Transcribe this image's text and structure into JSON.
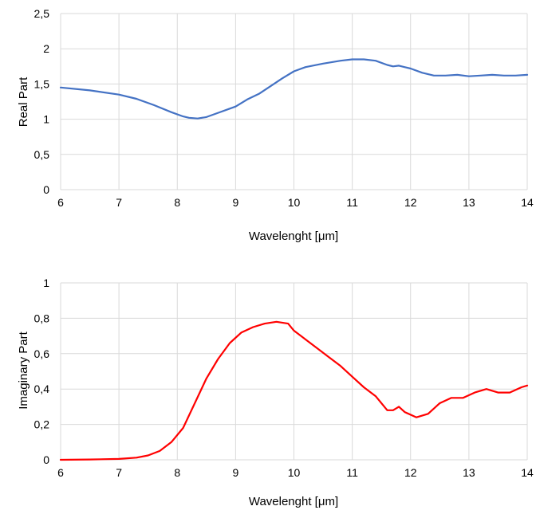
{
  "chart_data": [
    {
      "type": "line",
      "title": "",
      "xlabel": "Wavelenght [μm]",
      "ylabel": "Real Part",
      "xlim": [
        6,
        14
      ],
      "ylim": [
        0,
        2.5
      ],
      "xticks": [
        "6",
        "7",
        "8",
        "9",
        "10",
        "11",
        "12",
        "13",
        "14"
      ],
      "yticks": [
        "0",
        "0,5",
        "1",
        "1,5",
        "2",
        "2,5"
      ],
      "grid": true,
      "legend": "none",
      "color": "#4472c4",
      "series": [
        {
          "x": [
            6.0,
            6.5,
            7.0,
            7.3,
            7.6,
            7.9,
            8.1,
            8.2,
            8.35,
            8.5,
            8.7,
            8.9,
            9.0,
            9.2,
            9.4,
            9.6,
            9.8,
            10.0,
            10.2,
            10.5,
            10.8,
            11.0,
            11.2,
            11.4,
            11.6,
            11.7,
            11.8,
            12.0,
            12.2,
            12.4,
            12.6,
            12.8,
            13.0,
            13.2,
            13.4,
            13.6,
            13.8,
            14.0
          ],
          "y": [
            1.45,
            1.41,
            1.35,
            1.29,
            1.2,
            1.1,
            1.04,
            1.02,
            1.01,
            1.03,
            1.09,
            1.15,
            1.18,
            1.28,
            1.36,
            1.47,
            1.58,
            1.68,
            1.74,
            1.79,
            1.83,
            1.85,
            1.85,
            1.83,
            1.77,
            1.75,
            1.76,
            1.72,
            1.66,
            1.62,
            1.62,
            1.63,
            1.61,
            1.62,
            1.63,
            1.62,
            1.62,
            1.63
          ]
        }
      ]
    },
    {
      "type": "line",
      "title": "",
      "xlabel": "Wavelenght [μm]",
      "ylabel": "Imaginary Part",
      "xlim": [
        6,
        14
      ],
      "ylim": [
        0,
        1
      ],
      "xticks": [
        "6",
        "7",
        "8",
        "9",
        "10",
        "11",
        "12",
        "13",
        "14"
      ],
      "yticks": [
        "0",
        "0,2",
        "0,4",
        "0,6",
        "0,8",
        "1"
      ],
      "grid": true,
      "legend": "none",
      "color": "#ff0000",
      "series": [
        {
          "x": [
            6.0,
            6.5,
            7.0,
            7.3,
            7.5,
            7.7,
            7.9,
            8.1,
            8.3,
            8.5,
            8.7,
            8.9,
            9.1,
            9.3,
            9.5,
            9.7,
            9.9,
            10.0,
            10.2,
            10.4,
            10.6,
            10.8,
            11.0,
            11.2,
            11.4,
            11.6,
            11.7,
            11.8,
            11.9,
            12.1,
            12.3,
            12.5,
            12.7,
            12.9,
            13.1,
            13.3,
            13.5,
            13.7,
            13.9,
            14.0
          ],
          "y": [
            0.0,
            0.002,
            0.005,
            0.012,
            0.025,
            0.05,
            0.1,
            0.18,
            0.32,
            0.46,
            0.57,
            0.66,
            0.72,
            0.75,
            0.77,
            0.78,
            0.77,
            0.73,
            0.68,
            0.63,
            0.58,
            0.53,
            0.47,
            0.41,
            0.36,
            0.28,
            0.28,
            0.3,
            0.27,
            0.24,
            0.26,
            0.32,
            0.35,
            0.35,
            0.38,
            0.4,
            0.38,
            0.38,
            0.41,
            0.42
          ]
        }
      ]
    }
  ]
}
